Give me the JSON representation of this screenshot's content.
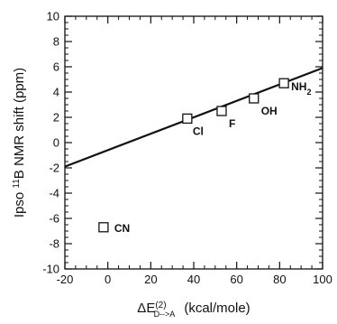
{
  "chart_data": {
    "type": "scatter",
    "xlim": [
      -20,
      100
    ],
    "ylim": [
      -10,
      10
    ],
    "x_ticks": [
      -20,
      0,
      20,
      40,
      60,
      80,
      100
    ],
    "y_ticks": [
      -10,
      -8,
      -6,
      -4,
      -2,
      0,
      2,
      4,
      6,
      8,
      10
    ],
    "x_minor_step": 5,
    "y_minor_step": 0.5,
    "grid": false,
    "ylabel": "Ipso ¹¹B NMR shift (ppm)",
    "xlabel": "ΔE(2)D-->A (kcal/mole)",
    "points": [
      {
        "label": "Cl",
        "x": 37,
        "y": 1.9
      },
      {
        "label": "F",
        "x": 53,
        "y": 2.5
      },
      {
        "label": "OH",
        "x": 68,
        "y": 3.5
      },
      {
        "label": "NH2",
        "x": 82,
        "y": 4.7
      },
      {
        "label": "CN",
        "x": -2,
        "y": -6.7
      }
    ],
    "fit_line": {
      "x": [
        -20,
        100
      ],
      "y": [
        -1.9,
        5.9
      ]
    }
  }
}
